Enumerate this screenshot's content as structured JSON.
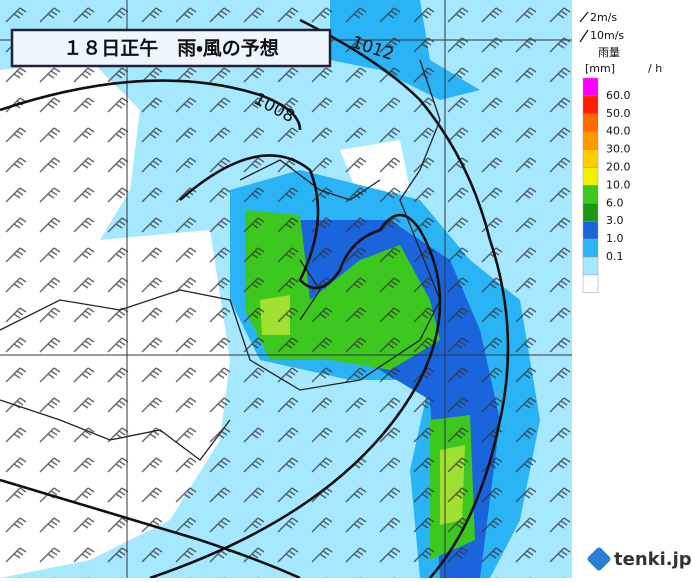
{
  "header": {
    "title": "１８日正午　雨・風の予想"
  },
  "wind_legend": {
    "short": "2m/s",
    "long": "10m/s"
  },
  "rain_legend": {
    "title": "雨量",
    "unit": "[mm]",
    "per": "/ h",
    "labels": [
      "60.0",
      "50.0",
      "40.0",
      "30.0",
      "20.0",
      "10.0",
      "6.0",
      "3.0",
      "1.0",
      "0.1"
    ],
    "colors": [
      "#ff00ff",
      "#ff1e00",
      "#ff6a00",
      "#ff9900",
      "#ffcc00",
      "#f2f200",
      "#3cc81e",
      "#1e9614",
      "#1a64dc",
      "#2ab4f5",
      "#a6e8ff",
      "#ffffff"
    ]
  },
  "isobars": [
    "1012",
    "1008"
  ],
  "logo": "tenki.jp"
}
